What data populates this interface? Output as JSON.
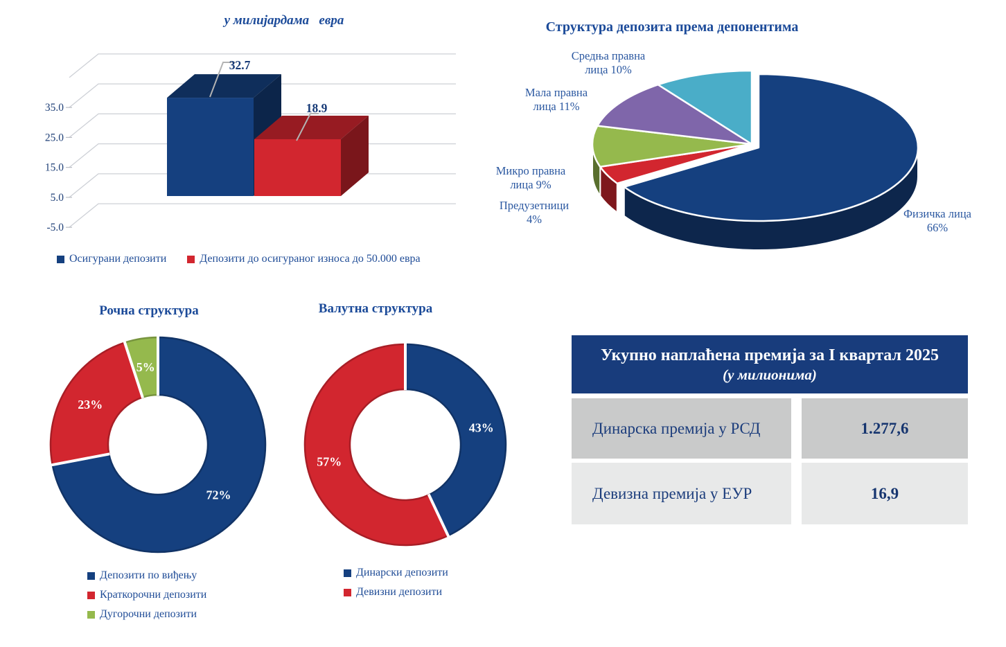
{
  "palette": {
    "navy": "#15407f",
    "red": "#d2262f",
    "green": "#95b94d",
    "purple": "#7f66aa",
    "teal": "#4aadc8",
    "title_blue": "#1b4a99",
    "label_blue": "#2a57a0",
    "legend_text_blue": "#1e4b96",
    "grid_gray": "#cdd0d6",
    "leader_gray": "#b3b3b3",
    "table_header_bg": "#183c7c",
    "table_row1_bg": "#c9caca",
    "table_row2_bg": "#e8e9e9"
  },
  "chart_data": [
    {
      "id": "insured-deposits-bar",
      "type": "bar",
      "projection": "3d",
      "title": "у милијардама   евра",
      "categories": [
        "Осигурани депозити",
        "Депозити до осигураног износа до 50.000 евра"
      ],
      "values": [
        32.7,
        18.9
      ],
      "value_labels": [
        "32.7",
        "18.9"
      ],
      "colors": [
        "#15407f",
        "#d2262f"
      ],
      "yticks": [
        "35.0",
        "25.0",
        "15.0",
        "5.0",
        "-5.0"
      ],
      "ylim": [
        -5,
        45
      ],
      "grid": true,
      "legend_position": "bottom"
    },
    {
      "id": "depositor-structure-pie",
      "type": "pie",
      "projection": "3d",
      "title": "Структура депозита према депонентима",
      "labels": [
        "Физичка лица",
        "Предузетници",
        "Микро правна лица",
        "Мала правна лица",
        "Средња правна лица"
      ],
      "values": [
        66,
        4,
        9,
        11,
        10
      ],
      "pct_labels": [
        [
          "Физичка лица",
          "66%"
        ],
        [
          "Предузетници",
          "4%"
        ],
        [
          "Микро правна",
          "лица 9%"
        ],
        [
          "Мала правна",
          "лица 11%"
        ],
        [
          "Средња правна",
          "лица 10%"
        ]
      ],
      "colors": [
        "#15407f",
        "#d2262f",
        "#95b94d",
        "#7f66aa",
        "#4aadc8"
      ],
      "start_angle": 0,
      "clockwise": true
    },
    {
      "id": "maturity-structure-donut",
      "type": "donut",
      "title": "Рочна структура",
      "labels": [
        "Депозити по виђењу",
        "Краткорочни депозити",
        "Дугорочни депозити"
      ],
      "values": [
        72,
        23,
        5
      ],
      "pct_labels": [
        "72%",
        "23%",
        "5%"
      ],
      "colors": [
        "#15407f",
        "#d2262f",
        "#95b94d"
      ],
      "legend_position": "bottom"
    },
    {
      "id": "currency-structure-donut",
      "type": "donut",
      "title": "Валутна структура",
      "labels": [
        "Динарски депозити",
        "Девизни депозити"
      ],
      "values": [
        43,
        57
      ],
      "pct_labels": [
        "43%",
        "57%"
      ],
      "colors": [
        "#15407f",
        "#d2262f"
      ],
      "legend_position": "bottom"
    }
  ],
  "premium_table": {
    "title_line1": "Укупно наплаћена премија за I квартал 2025",
    "title_line2": "(у милионима)",
    "rows": [
      {
        "label": "Динарска премија у РСД",
        "value": "1.277,6",
        "bg": "#c9caca"
      },
      {
        "label": "Девизна премија у ЕУР",
        "value": "16,9",
        "bg": "#e8e9e9"
      }
    ]
  }
}
